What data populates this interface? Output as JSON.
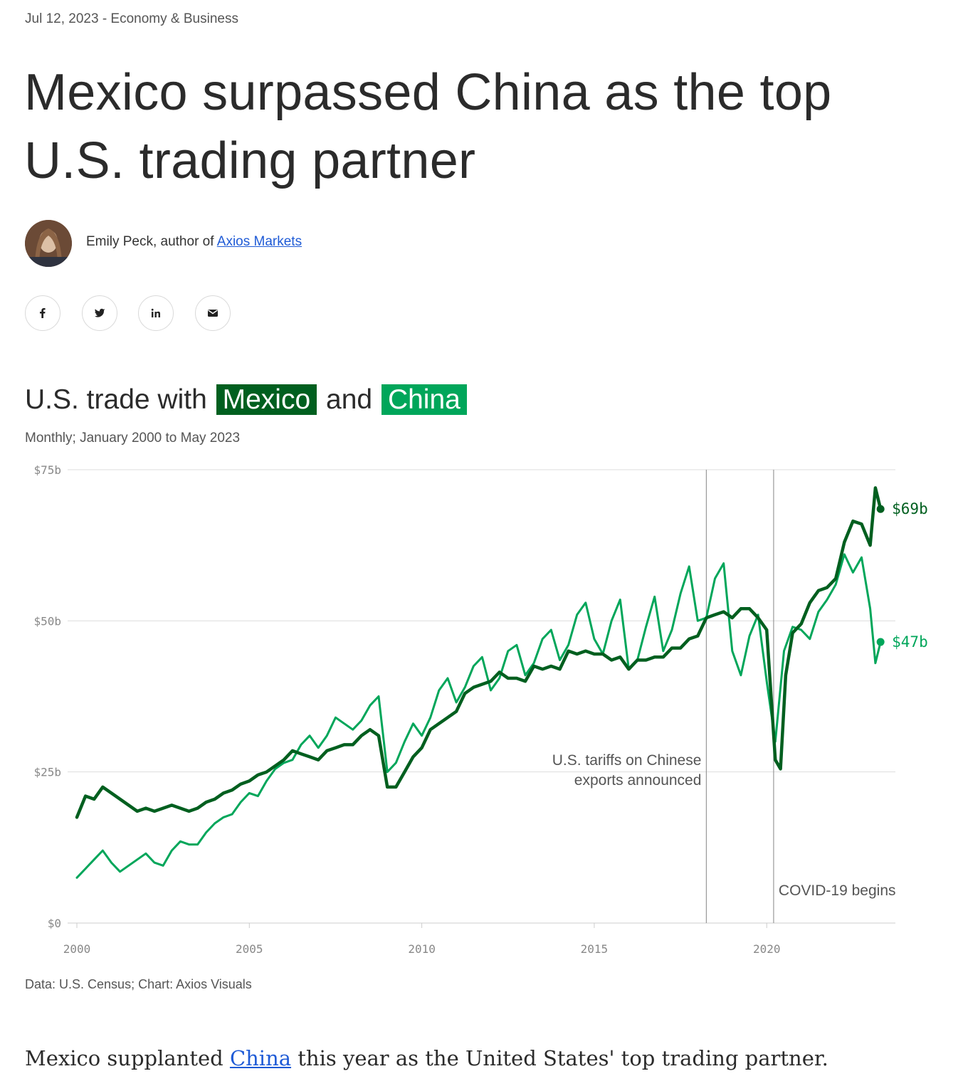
{
  "meta": {
    "date": "Jul 12, 2023",
    "separator": "-",
    "section": "Economy & Business"
  },
  "headline": {
    "line1": "Mexico surpassed China as the top",
    "line2": "U.S. trading partner"
  },
  "byline": {
    "prefix": "Emily Peck, author of",
    "link": "Axios Markets"
  },
  "share": {
    "icons": [
      "facebook-icon",
      "twitter-icon",
      "linkedin-icon",
      "email-icon"
    ]
  },
  "chart_title": {
    "pre": "U.S. trade with",
    "mexico": "Mexico",
    "mid": "and",
    "china": "China"
  },
  "subtitle": "Monthly; January 2000 to May 2023",
  "source": "Data: U.S. Census; Chart: Axios Visuals",
  "body": {
    "pre": "Mexico supplanted",
    "link": "China",
    "post": "this year as the United States' top trading partner."
  },
  "colors": {
    "mexico": "#005f1f",
    "china": "#00a65a",
    "grid": "#dddddd",
    "annotation": "#999999"
  },
  "chart_data": {
    "type": "line",
    "title": "U.S. trade with Mexico and China",
    "subtitle": "Monthly; January 2000 to May 2023",
    "x_unit": "year",
    "xlim": [
      2000.0,
      2023.4
    ],
    "ylim": [
      0,
      75
    ],
    "y_ticks": [
      0,
      25,
      50,
      75
    ],
    "y_tick_labels": [
      "$0",
      "$25b",
      "$50b",
      "$75b"
    ],
    "x_ticks": [
      2000,
      2005,
      2010,
      2015,
      2020
    ],
    "x_tick_labels": [
      "2000",
      "2005",
      "2010",
      "2015",
      "2020"
    ],
    "grid": true,
    "series": [
      {
        "name": "Mexico",
        "color": "#005f1f",
        "end_label": "$69b",
        "points": [
          [
            2000.0,
            17.5
          ],
          [
            2000.25,
            21
          ],
          [
            2000.5,
            20.5
          ],
          [
            2000.75,
            22.5
          ],
          [
            2001.0,
            21.5
          ],
          [
            2001.25,
            20.5
          ],
          [
            2001.5,
            19.5
          ],
          [
            2001.75,
            18.5
          ],
          [
            2002.0,
            19
          ],
          [
            2002.25,
            18.5
          ],
          [
            2002.5,
            19
          ],
          [
            2002.75,
            19.5
          ],
          [
            2003.0,
            19
          ],
          [
            2003.25,
            18.5
          ],
          [
            2003.5,
            19
          ],
          [
            2003.75,
            20
          ],
          [
            2004.0,
            20.5
          ],
          [
            2004.25,
            21.5
          ],
          [
            2004.5,
            22
          ],
          [
            2004.75,
            23
          ],
          [
            2005.0,
            23.5
          ],
          [
            2005.25,
            24.5
          ],
          [
            2005.5,
            25
          ],
          [
            2005.75,
            26
          ],
          [
            2006.0,
            27
          ],
          [
            2006.25,
            28.5
          ],
          [
            2006.5,
            28
          ],
          [
            2006.75,
            27.5
          ],
          [
            2007.0,
            27
          ],
          [
            2007.25,
            28.5
          ],
          [
            2007.5,
            29
          ],
          [
            2007.75,
            29.5
          ],
          [
            2008.0,
            29.5
          ],
          [
            2008.25,
            31
          ],
          [
            2008.5,
            32
          ],
          [
            2008.75,
            31
          ],
          [
            2009.0,
            22.5
          ],
          [
            2009.25,
            22.5
          ],
          [
            2009.5,
            25
          ],
          [
            2009.75,
            27.5
          ],
          [
            2010.0,
            29
          ],
          [
            2010.25,
            32
          ],
          [
            2010.5,
            33
          ],
          [
            2010.75,
            34
          ],
          [
            2011.0,
            35
          ],
          [
            2011.25,
            38
          ],
          [
            2011.5,
            39
          ],
          [
            2011.75,
            39.5
          ],
          [
            2012.0,
            40
          ],
          [
            2012.25,
            41.5
          ],
          [
            2012.5,
            40.5
          ],
          [
            2012.75,
            40.5
          ],
          [
            2013.0,
            40
          ],
          [
            2013.25,
            42.5
          ],
          [
            2013.5,
            42
          ],
          [
            2013.75,
            42.5
          ],
          [
            2014.0,
            42
          ],
          [
            2014.25,
            45
          ],
          [
            2014.5,
            44.5
          ],
          [
            2014.75,
            45
          ],
          [
            2015.0,
            44.5
          ],
          [
            2015.25,
            44.5
          ],
          [
            2015.5,
            43.5
          ],
          [
            2015.75,
            44
          ],
          [
            2016.0,
            42
          ],
          [
            2016.25,
            43.5
          ],
          [
            2016.5,
            43.5
          ],
          [
            2016.75,
            44
          ],
          [
            2017.0,
            44
          ],
          [
            2017.25,
            45.5
          ],
          [
            2017.5,
            45.5
          ],
          [
            2017.75,
            47
          ],
          [
            2018.0,
            47.5
          ],
          [
            2018.25,
            50.5
          ],
          [
            2018.5,
            51
          ],
          [
            2018.75,
            51.5
          ],
          [
            2019.0,
            50.5
          ],
          [
            2019.25,
            52
          ],
          [
            2019.5,
            52
          ],
          [
            2019.75,
            50.5
          ],
          [
            2020.0,
            48.5
          ],
          [
            2020.25,
            27
          ],
          [
            2020.4,
            25.5
          ],
          [
            2020.55,
            41
          ],
          [
            2020.75,
            48
          ],
          [
            2021.0,
            49.5
          ],
          [
            2021.25,
            53
          ],
          [
            2021.5,
            55
          ],
          [
            2021.75,
            55.5
          ],
          [
            2022.0,
            57
          ],
          [
            2022.25,
            63
          ],
          [
            2022.5,
            66.5
          ],
          [
            2022.75,
            66
          ],
          [
            2023.0,
            62.5
          ],
          [
            2023.15,
            72
          ],
          [
            2023.3,
            68.5
          ]
        ]
      },
      {
        "name": "China",
        "color": "#00a65a",
        "end_label": "$47b",
        "points": [
          [
            2000.0,
            7.5
          ],
          [
            2000.25,
            9
          ],
          [
            2000.5,
            10.5
          ],
          [
            2000.75,
            12
          ],
          [
            2001.0,
            10
          ],
          [
            2001.25,
            8.5
          ],
          [
            2001.5,
            9.5
          ],
          [
            2001.75,
            10.5
          ],
          [
            2002.0,
            11.5
          ],
          [
            2002.25,
            10
          ],
          [
            2002.5,
            9.5
          ],
          [
            2002.75,
            12
          ],
          [
            2003.0,
            13.5
          ],
          [
            2003.25,
            13
          ],
          [
            2003.5,
            13
          ],
          [
            2003.75,
            15
          ],
          [
            2004.0,
            16.5
          ],
          [
            2004.25,
            17.5
          ],
          [
            2004.5,
            18
          ],
          [
            2004.75,
            20
          ],
          [
            2005.0,
            21.5
          ],
          [
            2005.25,
            21
          ],
          [
            2005.5,
            23.5
          ],
          [
            2005.75,
            25.5
          ],
          [
            2006.0,
            26.5
          ],
          [
            2006.25,
            27
          ],
          [
            2006.5,
            29.5
          ],
          [
            2006.75,
            31
          ],
          [
            2007.0,
            29
          ],
          [
            2007.25,
            31
          ],
          [
            2007.5,
            34
          ],
          [
            2007.75,
            33
          ],
          [
            2008.0,
            32
          ],
          [
            2008.25,
            33.5
          ],
          [
            2008.5,
            36
          ],
          [
            2008.75,
            37.5
          ],
          [
            2009.0,
            25
          ],
          [
            2009.25,
            26.5
          ],
          [
            2009.5,
            30
          ],
          [
            2009.75,
            33
          ],
          [
            2010.0,
            31
          ],
          [
            2010.25,
            34
          ],
          [
            2010.5,
            38.5
          ],
          [
            2010.75,
            40.5
          ],
          [
            2011.0,
            36.5
          ],
          [
            2011.25,
            39
          ],
          [
            2011.5,
            42.5
          ],
          [
            2011.75,
            44
          ],
          [
            2012.0,
            38.5
          ],
          [
            2012.25,
            40.5
          ],
          [
            2012.5,
            45
          ],
          [
            2012.75,
            46
          ],
          [
            2013.0,
            41
          ],
          [
            2013.25,
            43
          ],
          [
            2013.5,
            47
          ],
          [
            2013.75,
            48.5
          ],
          [
            2014.0,
            43.5
          ],
          [
            2014.25,
            46
          ],
          [
            2014.5,
            51
          ],
          [
            2014.75,
            53
          ],
          [
            2015.0,
            47
          ],
          [
            2015.25,
            44.5
          ],
          [
            2015.5,
            50
          ],
          [
            2015.75,
            53.5
          ],
          [
            2016.0,
            42
          ],
          [
            2016.25,
            43.5
          ],
          [
            2016.5,
            49
          ],
          [
            2016.75,
            54
          ],
          [
            2017.0,
            45
          ],
          [
            2017.25,
            48.5
          ],
          [
            2017.5,
            54.5
          ],
          [
            2017.75,
            59
          ],
          [
            2018.0,
            50
          ],
          [
            2018.25,
            50.5
          ],
          [
            2018.5,
            57
          ],
          [
            2018.75,
            59.5
          ],
          [
            2019.0,
            45
          ],
          [
            2019.25,
            41
          ],
          [
            2019.5,
            47.5
          ],
          [
            2019.75,
            51
          ],
          [
            2020.0,
            40
          ],
          [
            2020.25,
            30
          ],
          [
            2020.5,
            45
          ],
          [
            2020.75,
            49
          ],
          [
            2021.0,
            48.5
          ],
          [
            2021.25,
            47
          ],
          [
            2021.5,
            51.5
          ],
          [
            2021.75,
            53.5
          ],
          [
            2022.0,
            56
          ],
          [
            2022.25,
            61
          ],
          [
            2022.5,
            58
          ],
          [
            2022.75,
            60.5
          ],
          [
            2023.0,
            52
          ],
          [
            2023.15,
            43
          ],
          [
            2023.3,
            46.5
          ]
        ]
      }
    ],
    "annotations": [
      {
        "x": 2018.25,
        "label_line1": "U.S. tariffs on Chinese",
        "label_line2": "exports announced"
      },
      {
        "x": 2020.2,
        "label_line1": "COVID-19 begins",
        "label_line2": ""
      }
    ]
  }
}
